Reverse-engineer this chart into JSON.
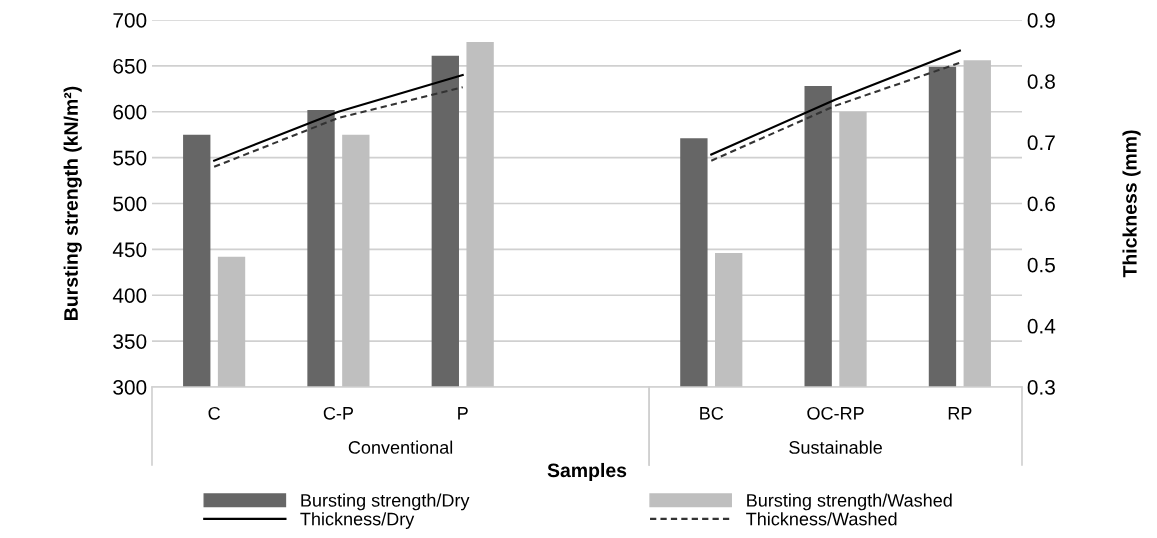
{
  "chart_data": {
    "type": "bar",
    "xlabel": "Samples",
    "ylabel": "Bursting strength (kN/m²)",
    "y2label": "Thickness (mm)",
    "categories": [
      "C",
      "C-P",
      "P",
      null,
      "BC",
      "OC-RP",
      "RP"
    ],
    "series": [
      {
        "name": "Bursting strength/Dry",
        "color": "#666666",
        "values": [
          575,
          602,
          661,
          null,
          571,
          628,
          649
        ]
      },
      {
        "name": "Bursting strength/Washed",
        "color": "#bfbfbf",
        "values": [
          442,
          575,
          676,
          null,
          446,
          600,
          656
        ]
      },
      {
        "name": "Thickness/Dry",
        "type": "line",
        "axis": "y2",
        "color": "#000000",
        "line_style": "solid",
        "values": [
          0.67,
          0.75,
          0.81,
          null,
          0.68,
          0.77,
          0.85
        ]
      },
      {
        "name": "Thickness/Washed",
        "type": "line",
        "axis": "y2",
        "color": "#333333",
        "line_style": "dashed",
        "values": [
          0.66,
          0.74,
          0.79,
          null,
          0.67,
          0.76,
          0.83
        ]
      }
    ],
    "annotations": [
      "Conventional",
      "Sustainable"
    ],
    "ylim": [
      300,
      700
    ],
    "yticks": [
      300,
      350,
      400,
      450,
      500,
      550,
      600,
      650,
      700
    ],
    "y2lim": [
      0.3,
      0.9
    ],
    "y2ticks": [
      0.3,
      0.4,
      0.5,
      0.6,
      0.7,
      0.8,
      0.9
    ],
    "grid": "y",
    "legend": "bottom",
    "marker": "none"
  }
}
